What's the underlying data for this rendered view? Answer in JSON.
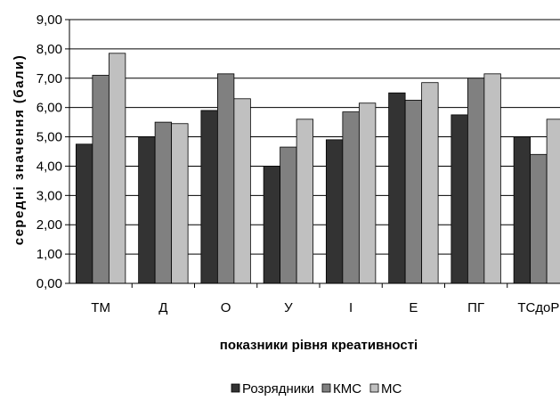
{
  "chart_data": {
    "type": "bar",
    "title": "",
    "xlabel": "показники рівня креативності",
    "ylabel": "середні значення (бали)",
    "categories": [
      "ТМ",
      "Д",
      "О",
      "У",
      "І",
      "Е",
      "ПГ",
      "ТСдоР"
    ],
    "series": [
      {
        "name": "Розрядники",
        "color": "#333333",
        "values": [
          4.75,
          5.0,
          5.9,
          4.0,
          4.9,
          6.5,
          5.75,
          5.0
        ]
      },
      {
        "name": "КМС",
        "color": "#808080",
        "values": [
          7.1,
          5.5,
          7.15,
          4.65,
          5.85,
          6.25,
          7.0,
          4.4
        ]
      },
      {
        "name": "МС",
        "color": "#c0c0c0",
        "values": [
          7.85,
          5.45,
          6.3,
          5.6,
          6.15,
          6.85,
          7.15,
          5.6
        ]
      }
    ],
    "ylim": [
      0,
      9
    ],
    "yticks": [
      "0,00",
      "1,00",
      "2,00",
      "3,00",
      "4,00",
      "5,00",
      "6,00",
      "7,00",
      "8,00",
      "9,00"
    ],
    "grid": true,
    "legend_position": "bottom"
  }
}
